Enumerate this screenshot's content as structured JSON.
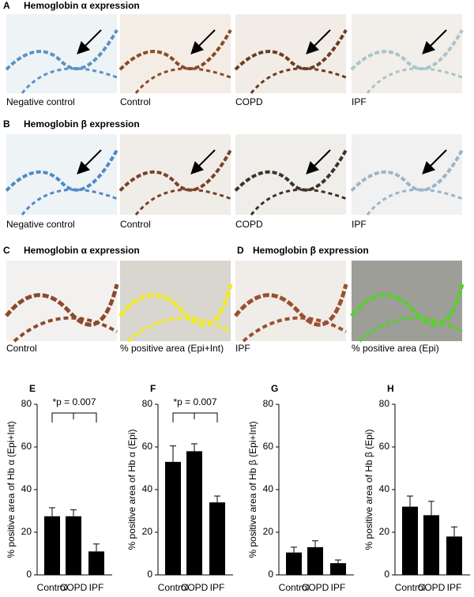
{
  "panels": [
    {
      "letter": "A",
      "title": "Hemoglobin α expression",
      "captions": [
        "Negative control",
        "Control",
        "COPD",
        "IPF"
      ]
    },
    {
      "letter": "B",
      "title": "Hemoglobin β expression",
      "captions": [
        "Negative control",
        "Control",
        "COPD",
        "IPF"
      ]
    },
    {
      "letter": "C",
      "title": "Hemoglobin α expression",
      "captions": [
        "Control",
        "% positive area (Epi+Int)"
      ]
    },
    {
      "letter": "D",
      "title": "Hemoglobin β expression",
      "captions": [
        "IPF",
        "% positive area (Epi)"
      ]
    }
  ],
  "chart_data": [
    {
      "type": "bar",
      "panel": "E",
      "ylabel": "% positive area of Hb α (Epi+Int)",
      "annotation": "*p = 0.007",
      "categories": [
        "Control",
        "COPD",
        "IPF"
      ],
      "values": [
        27.5,
        27.5,
        11
      ],
      "errors": [
        4,
        3,
        3.5
      ],
      "color": "#000000",
      "ylim": [
        0,
        80
      ],
      "yticks": [
        0,
        20,
        40,
        60,
        80
      ]
    },
    {
      "type": "bar",
      "panel": "F",
      "ylabel": "% positive area of Hb α (Epi)",
      "annotation": "*p = 0.007",
      "categories": [
        "Control",
        "COPD",
        "IPF"
      ],
      "values": [
        53,
        58,
        34
      ],
      "errors": [
        7.5,
        3.5,
        3
      ],
      "color": "#000000",
      "ylim": [
        0,
        80
      ],
      "yticks": [
        0,
        20,
        40,
        60,
        80
      ]
    },
    {
      "type": "bar",
      "panel": "G",
      "ylabel": "% positive area of Hb β (Epi+Int)",
      "categories": [
        "Control",
        "COPD",
        "IPF"
      ],
      "values": [
        10.5,
        13,
        5.5
      ],
      "errors": [
        2.5,
        3,
        1.5
      ],
      "color": "#000000",
      "ylim": [
        0,
        80
      ],
      "yticks": [
        0,
        20,
        40,
        60,
        80
      ]
    },
    {
      "type": "bar",
      "panel": "H",
      "ylabel": "% positive area of Hb β (Epi)",
      "categories": [
        "Control",
        "COPD",
        "IPF"
      ],
      "values": [
        32,
        28,
        18
      ],
      "errors": [
        5,
        6.5,
        4.5
      ],
      "color": "#000000",
      "ylim": [
        0,
        80
      ],
      "yticks": [
        0,
        20,
        40,
        60,
        80
      ]
    }
  ]
}
